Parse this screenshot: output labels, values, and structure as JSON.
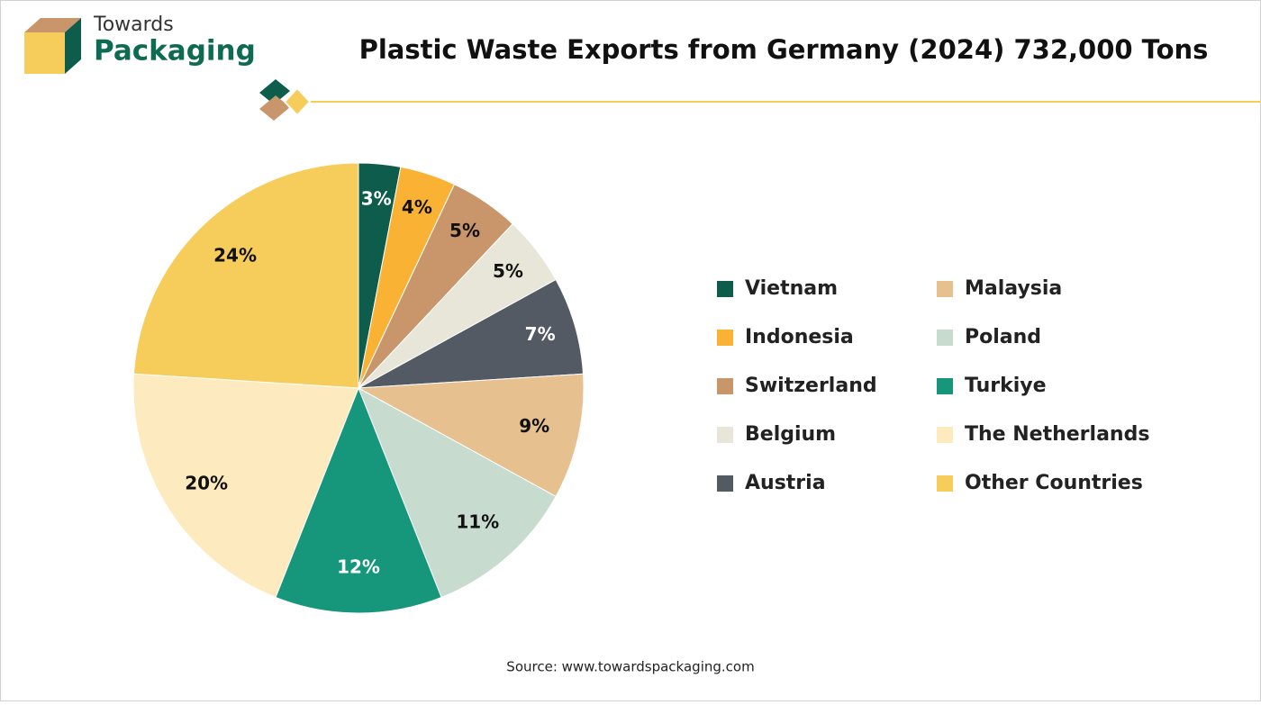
{
  "brand": {
    "name_top": "Towards",
    "name_bottom": "Packaging"
  },
  "chart_data": {
    "type": "pie",
    "title": "Plastic Waste Exports from Germany (2024) 732,000 Tons",
    "categories": [
      "Vietnam",
      "Indonesia",
      "Switzerland",
      "Belgium",
      "Austria",
      "Malaysia",
      "Poland",
      "Turkiye",
      "The Netherlands",
      "Other Countries"
    ],
    "values": [
      3,
      4,
      5,
      5,
      7,
      9,
      11,
      12,
      20,
      24
    ],
    "value_labels": [
      "3%",
      "4%",
      "5%",
      "5%",
      "7%",
      "9%",
      "11%",
      "12%",
      "20%",
      "24%"
    ],
    "colors": [
      "#0e5c4b",
      "#f9b234",
      "#c9956a",
      "#e8e5d9",
      "#545a63",
      "#e6c08f",
      "#c8dbcf",
      "#16977b",
      "#fdebbf",
      "#f6cc5a"
    ],
    "legend": "right",
    "source": "Source: www.towardspackaging.com"
  }
}
